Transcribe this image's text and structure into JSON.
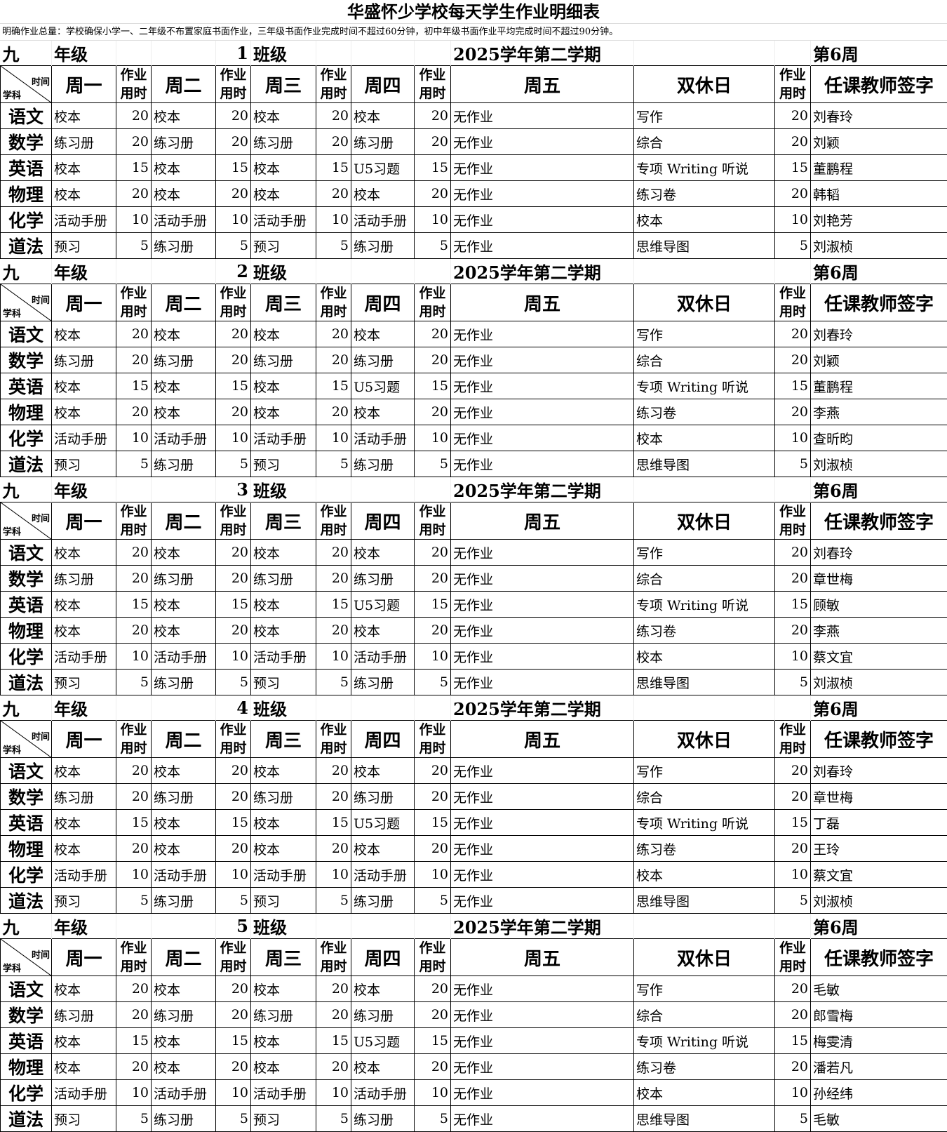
{
  "title": "华盛怀少学校每天学生作业明细表",
  "note": "明确作业总量：学校确保小学一、二年级不布置家庭书面作业，三年级书面作业完成时间不超过60分钟，初中年级书面作业平均完成时间不超过90分钟。",
  "header": {
    "corner_top": "时间",
    "corner_bottom": "学科",
    "mon": "周一",
    "tue": "周二",
    "wed": "周三",
    "thu": "周四",
    "fri": "周五",
    "weekend": "双休日",
    "time": "作业用时",
    "teacher": "任课教师签字"
  },
  "classes": [
    {
      "grade": "九",
      "grade_label": "年级",
      "class_no": "1",
      "class_label": "班级",
      "term": "2025学年第二学期",
      "week": "第6周",
      "rows": [
        [
          "语文",
          "校本",
          "20",
          "校本",
          "20",
          "校本",
          "20",
          "校本",
          "20",
          "无作业",
          "写作",
          "20",
          "刘春玲"
        ],
        [
          "数学",
          "练习册",
          "20",
          "练习册",
          "20",
          "练习册",
          "20",
          "练习册",
          "20",
          "无作业",
          "综合",
          "20",
          "刘颖"
        ],
        [
          "英语",
          "校本",
          "15",
          "校本",
          "15",
          "校本",
          "15",
          "U5习题",
          "15",
          "无作业",
          "专项  Writing 听说",
          "15",
          "董鹏程"
        ],
        [
          "物理",
          "校本",
          "20",
          "校本",
          "20",
          "校本",
          "20",
          "校本",
          "20",
          "无作业",
          "练习卷",
          "20",
          "韩韬"
        ],
        [
          "化学",
          "活动手册",
          "10",
          "活动手册",
          "10",
          "活动手册",
          "10",
          "活动手册",
          "10",
          "无作业",
          "校本",
          "10",
          "刘艳芳"
        ],
        [
          "道法",
          "预习",
          "5",
          "练习册",
          "5",
          "预习",
          "5",
          "练习册",
          "5",
          "无作业",
          "思维导图",
          "5",
          "刘淑桢"
        ]
      ]
    },
    {
      "grade": "九",
      "grade_label": "年级",
      "class_no": "2",
      "class_label": "班级",
      "term": "2025学年第二学期",
      "week": "第6周",
      "rows": [
        [
          "语文",
          "校本",
          "20",
          "校本",
          "20",
          "校本",
          "20",
          "校本",
          "20",
          "无作业",
          "写作",
          "20",
          "刘春玲"
        ],
        [
          "数学",
          "练习册",
          "20",
          "练习册",
          "20",
          "练习册",
          "20",
          "练习册",
          "20",
          "无作业",
          "综合",
          "20",
          "刘颖"
        ],
        [
          "英语",
          "校本",
          "15",
          "校本",
          "15",
          "校本",
          "15",
          "U5习题",
          "15",
          "无作业",
          "专项  Writing 听说",
          "15",
          "董鹏程"
        ],
        [
          "物理",
          "校本",
          "20",
          "校本",
          "20",
          "校本",
          "20",
          "校本",
          "20",
          "无作业",
          "练习卷",
          "20",
          "李燕"
        ],
        [
          "化学",
          "活动手册",
          "10",
          "活动手册",
          "10",
          "活动手册",
          "10",
          "活动手册",
          "10",
          "无作业",
          "校本",
          "10",
          "查昕昀"
        ],
        [
          "道法",
          "预习",
          "5",
          "练习册",
          "5",
          "预习",
          "5",
          "练习册",
          "5",
          "无作业",
          "思维导图",
          "5",
          "刘淑桢"
        ]
      ]
    },
    {
      "grade": "九",
      "grade_label": "年级",
      "class_no": "3",
      "class_label": "班级",
      "term": "2025学年第二学期",
      "week": "第6周",
      "rows": [
        [
          "语文",
          "校本",
          "20",
          "校本",
          "20",
          "校本",
          "20",
          "校本",
          "20",
          "无作业",
          "写作",
          "20",
          "刘春玲"
        ],
        [
          "数学",
          "练习册",
          "20",
          "练习册",
          "20",
          "练习册",
          "20",
          "练习册",
          "20",
          "无作业",
          "综合",
          "20",
          "章世梅"
        ],
        [
          "英语",
          "校本",
          "15",
          "校本",
          "15",
          "校本",
          "15",
          "U5习题",
          "15",
          "无作业",
          "专项 Writing 听说",
          "15",
          "顾敏"
        ],
        [
          "物理",
          "校本",
          "20",
          "校本",
          "20",
          "校本",
          "20",
          "校本",
          "20",
          "无作业",
          "练习卷",
          "20",
          "李燕"
        ],
        [
          "化学",
          "活动手册",
          "10",
          "活动手册",
          "10",
          "活动手册",
          "10",
          "活动手册",
          "10",
          "无作业",
          "校本",
          "10",
          "蔡文宜"
        ],
        [
          "道法",
          "预习",
          "5",
          "练习册",
          "5",
          "预习",
          "5",
          "练习册",
          "5",
          "无作业",
          "思维导图",
          "5",
          "刘淑桢"
        ]
      ]
    },
    {
      "grade": "九",
      "grade_label": "年级",
      "class_no": "4",
      "class_label": "班级",
      "term": "2025学年第二学期",
      "week": "第6周",
      "rows": [
        [
          "语文",
          "校本",
          "20",
          "校本",
          "20",
          "校本",
          "20",
          "校本",
          "20",
          "无作业",
          "写作",
          "20",
          "刘春玲"
        ],
        [
          "数学",
          "练习册",
          "20",
          "练习册",
          "20",
          "练习册",
          "20",
          "练习册",
          "20",
          "无作业",
          "综合",
          "20",
          "章世梅"
        ],
        [
          "英语",
          "校本",
          "15",
          "校本",
          "15",
          "校本",
          "15",
          "U5习题",
          "15",
          "无作业",
          "专项  Writing 听说",
          "15",
          "丁磊"
        ],
        [
          "物理",
          "校本",
          "20",
          "校本",
          "20",
          "校本",
          "20",
          "校本",
          "20",
          "无作业",
          "练习卷",
          "20",
          "王玲"
        ],
        [
          "化学",
          "活动手册",
          "10",
          "活动手册",
          "10",
          "活动手册",
          "10",
          "活动手册",
          "10",
          "无作业",
          "校本",
          "10",
          "蔡文宜"
        ],
        [
          "道法",
          "预习",
          "5",
          "练习册",
          "5",
          "预习",
          "5",
          "练习册",
          "5",
          "无作业",
          "思维导图",
          "5",
          "刘淑桢"
        ]
      ]
    },
    {
      "grade": "九",
      "grade_label": "年级",
      "class_no": "5",
      "class_label": "班级",
      "term": "2025学年第二学期",
      "week": "第6周",
      "rows": [
        [
          "语文",
          "校本",
          "20",
          "校本",
          "20",
          "校本",
          "20",
          "校本",
          "20",
          "无作业",
          "写作",
          "20",
          "毛敏"
        ],
        [
          "数学",
          "练习册",
          "20",
          "练习册",
          "20",
          "练习册",
          "20",
          "练习册",
          "20",
          "无作业",
          "综合",
          "20",
          "郎雪梅"
        ],
        [
          "英语",
          "校本",
          "15",
          "校本",
          "15",
          "校本",
          "15",
          "U5习题",
          "15",
          "无作业",
          "专项  Writing 听说",
          "15",
          "梅雯清"
        ],
        [
          "物理",
          "校本",
          "20",
          "校本",
          "20",
          "校本",
          "20",
          "校本",
          "20",
          "无作业",
          "练习卷",
          "20",
          "潘若凡"
        ],
        [
          "化学",
          "活动手册",
          "10",
          "活动手册",
          "10",
          "活动手册",
          "10",
          "活动手册",
          "10",
          "无作业",
          "校本",
          "10",
          "孙经纬"
        ],
        [
          "道法",
          "预习",
          "5",
          "练习册",
          "5",
          "预习",
          "5",
          "练习册",
          "5",
          "无作业",
          "思维导图",
          "5",
          "毛敏"
        ]
      ]
    }
  ]
}
